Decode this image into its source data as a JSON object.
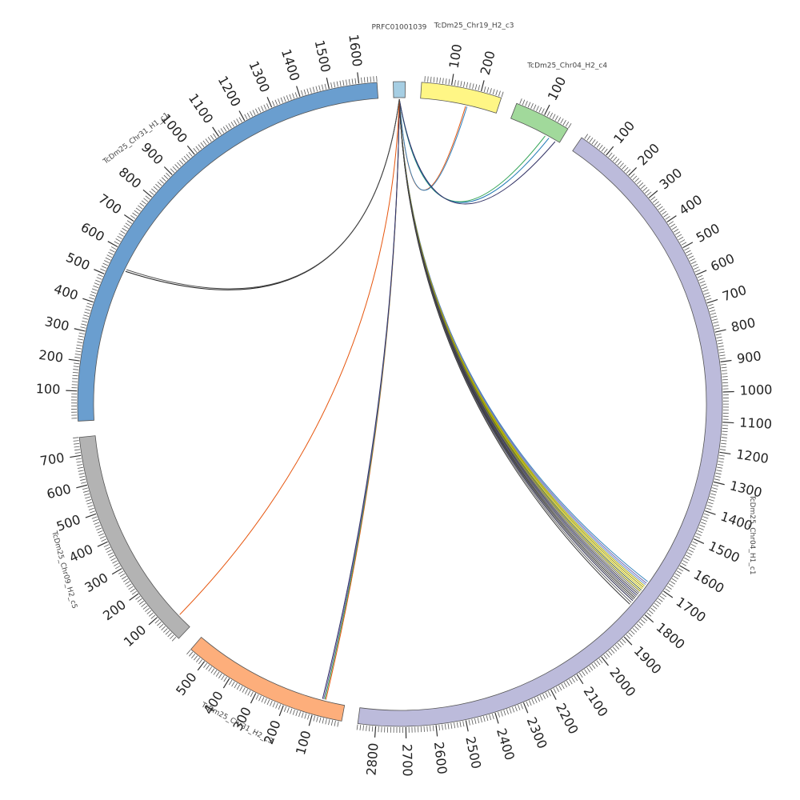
{
  "diagram": {
    "type": "circos",
    "segments": [
      {
        "id": "PRFC",
        "name": "PRFC01001039",
        "length": 40,
        "color": "#a6cee3",
        "ticks": false
      },
      {
        "id": "C19H2c3",
        "name": "TcDm25_Chr19_H2_c3",
        "length": 270,
        "color": "#fff685",
        "ticks": true
      },
      {
        "id": "C04H2c4",
        "name": "TcDm25_Chr04_H2_c4",
        "length": 190,
        "color": "#a1d99b",
        "ticks": true
      },
      {
        "id": "C04H1c1",
        "name": "TcDm25_Chr04_H1_c1",
        "length": 2860,
        "color": "#bcbbdb",
        "ticks": true
      },
      {
        "id": "C31H2c3",
        "name": "TcDm25_Chr31_H2_c3",
        "length": 560,
        "color": "#fdae7b",
        "ticks": true
      },
      {
        "id": "C09H2c5",
        "name": "TcDm25_Chr09_H2_c5",
        "length": 760,
        "color": "#b3b3b3",
        "ticks": true
      },
      {
        "id": "C31H1c1",
        "name": "TcDm25_Chr31_H1_c1",
        "length": 1660,
        "color": "#6a9ecf",
        "ticks": true
      }
    ],
    "tick_labels": {
      "C19H2c3": [
        "100",
        "200"
      ],
      "C04H2c4": [
        "100"
      ],
      "C04H1c1": [
        "100",
        "200",
        "300",
        "400",
        "500",
        "600",
        "700",
        "800",
        "900",
        "1000",
        "1100",
        "1200",
        "1300",
        "1400",
        "1500",
        "1600",
        "1700",
        "1800",
        "1900",
        "2000",
        "2100",
        "2200",
        "2300",
        "2400",
        "2500",
        "2600",
        "2700",
        "2800"
      ],
      "C31H2c3": [
        "100",
        "200",
        "300",
        "400",
        "500"
      ],
      "C09H2c5": [
        "100",
        "200",
        "300",
        "400",
        "500",
        "600",
        "700"
      ],
      "C31H1c1": [
        "100",
        "200",
        "300",
        "400",
        "500",
        "600",
        "700",
        "800",
        "900",
        "1000",
        "1100",
        "1200",
        "1300",
        "1400",
        "1500",
        "1600"
      ]
    },
    "links": [
      {
        "to": "C19H2c3",
        "pos": 160,
        "color": "#e6550d"
      },
      {
        "to": "C19H2c3",
        "pos": 165,
        "color": "#3182bd"
      },
      {
        "to": "C04H2c4",
        "pos": 135,
        "color": "#31a354"
      },
      {
        "to": "C04H2c4",
        "pos": 150,
        "color": "#1f78b4"
      },
      {
        "to": "C04H2c4",
        "pos": 175,
        "color": "#333366"
      },
      {
        "to": "C04H1c1",
        "pos": 1705,
        "color": "#3182bd"
      },
      {
        "to": "C04H1c1",
        "pos": 1712,
        "color": "#756bb1"
      },
      {
        "to": "C04H1c1",
        "pos": 1718,
        "color": "#6a8fd0"
      },
      {
        "to": "C04H1c1",
        "pos": 1724,
        "color": "#b8b000"
      },
      {
        "to": "C04H1c1",
        "pos": 1730,
        "color": "#9e9a00"
      },
      {
        "to": "C04H1c1",
        "pos": 1736,
        "color": "#c9c000"
      },
      {
        "to": "C04H1c1",
        "pos": 1742,
        "color": "#556b2f"
      },
      {
        "to": "C04H1c1",
        "pos": 1748,
        "color": "#8a8a00"
      },
      {
        "to": "C04H1c1",
        "pos": 1754,
        "color": "#6b6b6b"
      },
      {
        "to": "C04H1c1",
        "pos": 1760,
        "color": "#444444"
      },
      {
        "to": "C04H1c1",
        "pos": 1766,
        "color": "#3b3b6b"
      },
      {
        "to": "C04H1c1",
        "pos": 1772,
        "color": "#555555"
      },
      {
        "to": "C04H1c1",
        "pos": 1778,
        "color": "#333333"
      },
      {
        "to": "C04H1c1",
        "pos": 1784,
        "color": "#4b4b4b"
      },
      {
        "to": "C04H1c1",
        "pos": 1790,
        "color": "#2f2f4f"
      },
      {
        "to": "C04H1c1",
        "pos": 1798,
        "color": "#666666"
      },
      {
        "to": "C04H1c1",
        "pos": 1806,
        "color": "#3a3a3a"
      },
      {
        "to": "C31H2c3",
        "pos": 68,
        "color": "#e6550d"
      },
      {
        "to": "C31H2c3",
        "pos": 72,
        "color": "#31a354"
      },
      {
        "to": "C31H2c3",
        "pos": 76,
        "color": "#756bb1"
      },
      {
        "to": "C31H2c3",
        "pos": 80,
        "color": "#333366"
      },
      {
        "to": "C09H2c5",
        "pos": 55,
        "color": "#e6550d"
      },
      {
        "to": "C31H1c1",
        "pos": 538,
        "color": "#222222"
      },
      {
        "to": "C31H1c1",
        "pos": 545,
        "color": "#444444"
      }
    ]
  }
}
